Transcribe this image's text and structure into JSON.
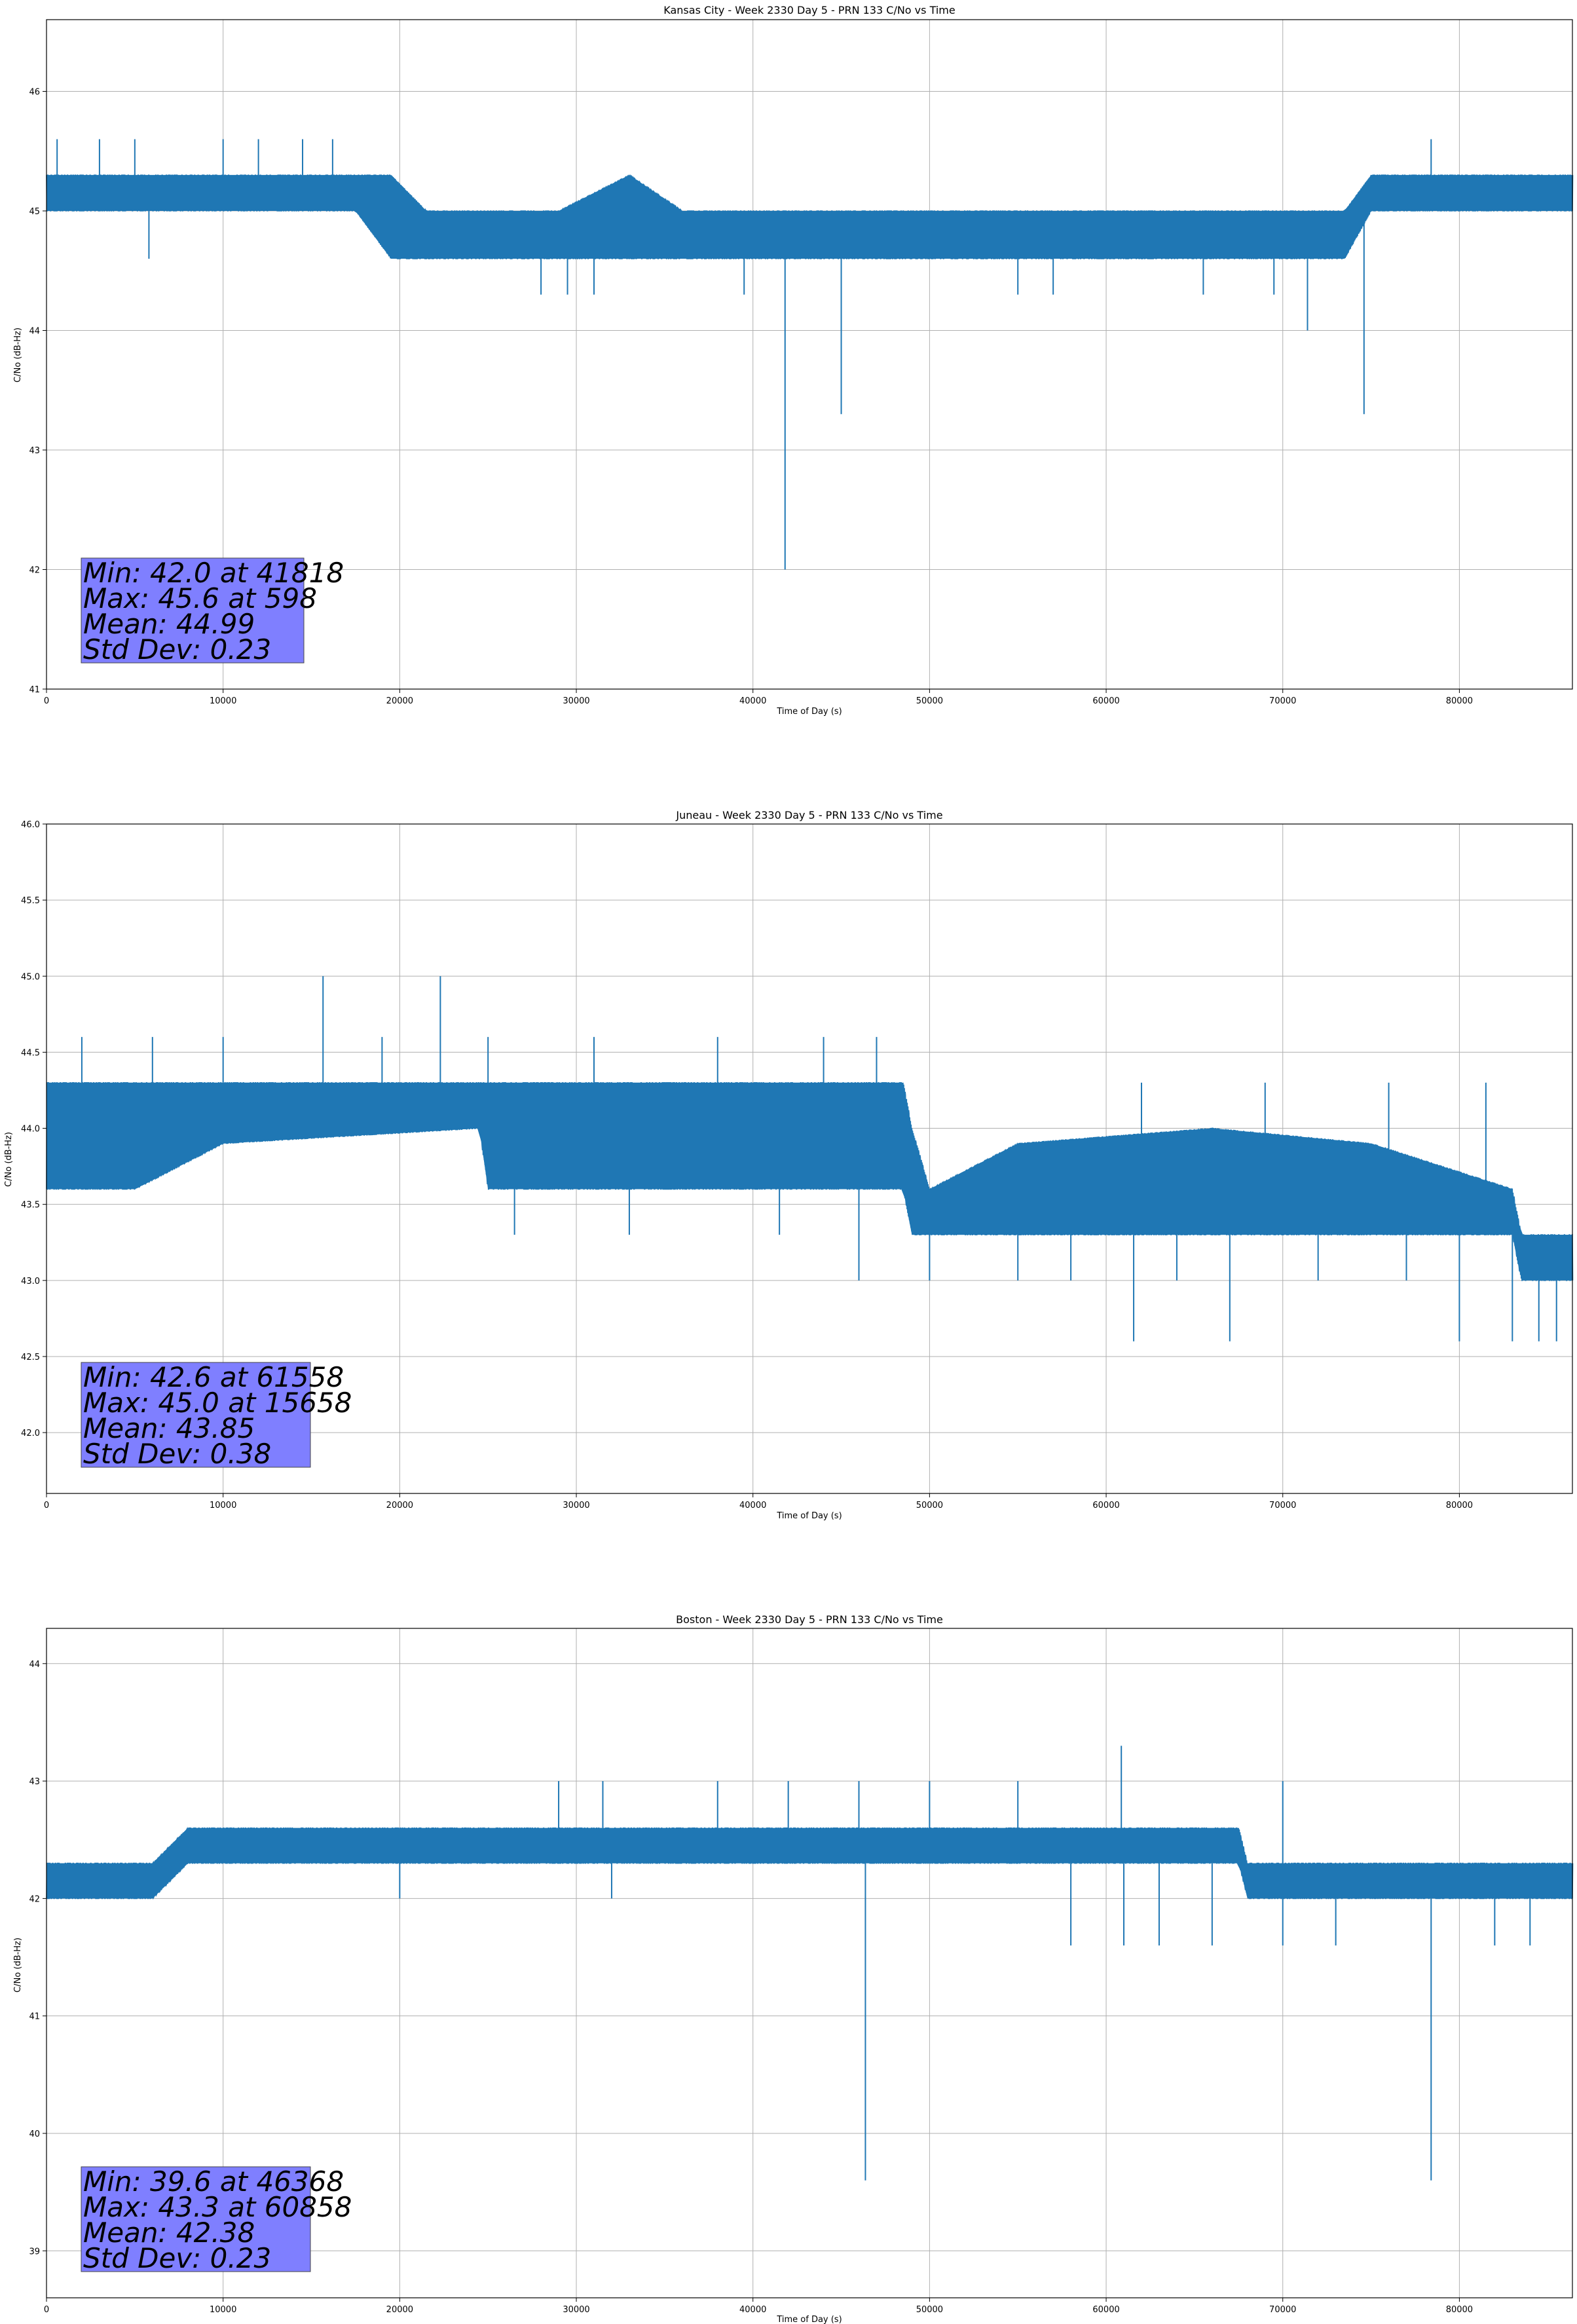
{
  "colors": {
    "series": "#1f77b4",
    "stats_box": "#7f7fff",
    "grid": "#b0b0b0",
    "axes": "#000000"
  },
  "chart_data": [
    {
      "type": "line",
      "title": "Kansas City - Week 2330 Day 5 - PRN 133 C/No vs Time",
      "xlabel": "Time of Day (s)",
      "ylabel": "C/No (dB-Hz)",
      "xlim": [
        0,
        86400
      ],
      "ylim": [
        41,
        46.6
      ],
      "xticks": [
        0,
        10000,
        20000,
        30000,
        40000,
        50000,
        60000,
        70000,
        80000
      ],
      "yticks": [
        41,
        42,
        43,
        44,
        45,
        46
      ],
      "grid": true,
      "legend": "none",
      "series": [
        {
          "name": "",
          "color": "#1f77b4",
          "band": [
            [
              0,
              45.0,
              45.3
            ],
            [
              17500,
              45.0,
              45.3
            ],
            [
              19500,
              44.6,
              45.3
            ],
            [
              21500,
              44.6,
              45.0
            ],
            [
              29000,
              44.6,
              45.0
            ],
            [
              33000,
              44.6,
              45.3
            ],
            [
              36000,
              44.6,
              45.0
            ],
            [
              64000,
              44.6,
              45.0
            ],
            [
              66000,
              44.6,
              45.0
            ],
            [
              73500,
              44.6,
              45.0
            ],
            [
              75000,
              45.0,
              45.3
            ],
            [
              86400,
              45.0,
              45.3
            ]
          ]
        }
      ],
      "spikes": [
        [
          5800,
          44.6
        ],
        [
          28000,
          44.3
        ],
        [
          29500,
          44.3
        ],
        [
          31000,
          44.3
        ],
        [
          39500,
          44.3
        ],
        [
          41818,
          42.0
        ],
        [
          45000,
          43.3
        ],
        [
          55000,
          44.3
        ],
        [
          57000,
          44.3
        ],
        [
          65500,
          44.3
        ],
        [
          69500,
          44.3
        ],
        [
          71400,
          44.0
        ],
        [
          74600,
          43.3
        ]
      ],
      "peaks": [
        [
          600,
          45.6
        ],
        [
          3000,
          45.6
        ],
        [
          5000,
          45.6
        ],
        [
          10000,
          45.6
        ],
        [
          12000,
          45.6
        ],
        [
          14500,
          45.6
        ],
        [
          16200,
          45.6
        ],
        [
          78400,
          45.6
        ]
      ],
      "stats": {
        "min": "Min: 42.0 at 41818",
        "max": "Max: 45.6 at 598",
        "mean": "Mean: 44.99",
        "std": "Std Dev: 0.23"
      }
    },
    {
      "type": "line",
      "title": "Juneau - Week 2330 Day 5 - PRN 133 C/No vs Time",
      "xlabel": "Time of Day (s)",
      "ylabel": "C/No (dB-Hz)",
      "xlim": [
        0,
        86400
      ],
      "ylim": [
        41.6,
        46.0
      ],
      "xticks": [
        0,
        10000,
        20000,
        30000,
        40000,
        50000,
        60000,
        70000,
        80000
      ],
      "yticks": [
        42.0,
        42.5,
        43.0,
        43.5,
        44.0,
        44.5,
        45.0,
        45.5,
        46.0
      ],
      "grid": true,
      "legend": "none",
      "series": [
        {
          "name": "",
          "color": "#1f77b4",
          "band": [
            [
              0,
              43.6,
              44.3
            ],
            [
              5000,
              43.6,
              44.3
            ],
            [
              10000,
              43.9,
              44.3
            ],
            [
              24500,
              44.0,
              44.3
            ],
            [
              25000,
              43.6,
              44.3
            ],
            [
              36000,
              43.6,
              44.3
            ],
            [
              48500,
              43.6,
              44.3
            ],
            [
              49000,
              43.3,
              44.0
            ],
            [
              50000,
              43.3,
              43.6
            ],
            [
              55000,
              43.3,
              43.9
            ],
            [
              66000,
              43.3,
              44.0
            ],
            [
              75000,
              43.3,
              43.9
            ],
            [
              83000,
              43.3,
              43.6
            ],
            [
              83500,
              43.0,
              43.3
            ],
            [
              86400,
              43.0,
              43.3
            ]
          ]
        }
      ],
      "spikes": [
        [
          26500,
          43.3
        ],
        [
          33000,
          43.3
        ],
        [
          41500,
          43.3
        ],
        [
          46000,
          43.0
        ],
        [
          50000,
          43.0
        ],
        [
          55000,
          43.0
        ],
        [
          58000,
          43.0
        ],
        [
          61558,
          42.6
        ],
        [
          64000,
          43.0
        ],
        [
          67000,
          42.6
        ],
        [
          72000,
          43.0
        ],
        [
          77000,
          43.0
        ],
        [
          80000,
          42.6
        ],
        [
          83000,
          42.6
        ],
        [
          84500,
          42.6
        ],
        [
          85500,
          42.6
        ]
      ],
      "peaks": [
        [
          2000,
          44.6
        ],
        [
          6000,
          44.6
        ],
        [
          10000,
          44.6
        ],
        [
          15658,
          45.0
        ],
        [
          19000,
          44.6
        ],
        [
          22300,
          45.0
        ],
        [
          25000,
          44.6
        ],
        [
          31000,
          44.6
        ],
        [
          38000,
          44.6
        ],
        [
          44000,
          44.6
        ],
        [
          47000,
          44.6
        ],
        [
          62000,
          44.3
        ],
        [
          69000,
          44.3
        ],
        [
          76000,
          44.3
        ],
        [
          81500,
          44.3
        ]
      ],
      "stats": {
        "min": "Min: 42.6 at 61558",
        "max": "Max: 45.0 at 15658",
        "mean": "Mean: 43.85",
        "std": "Std Dev: 0.38"
      }
    },
    {
      "type": "line",
      "title": "Boston - Week 2330 Day 5 - PRN 133 C/No vs Time",
      "xlabel": "Time of Day (s)",
      "ylabel": "C/No (dB-Hz)",
      "xlim": [
        0,
        86400
      ],
      "ylim": [
        38.6,
        44.3
      ],
      "xticks": [
        0,
        10000,
        20000,
        30000,
        40000,
        50000,
        60000,
        70000,
        80000
      ],
      "yticks": [
        39,
        40,
        41,
        42,
        43,
        44
      ],
      "grid": true,
      "legend": "none",
      "series": [
        {
          "name": "",
          "color": "#1f77b4",
          "band": [
            [
              0,
              42.0,
              42.3
            ],
            [
              6000,
              42.0,
              42.3
            ],
            [
              8000,
              42.3,
              42.6
            ],
            [
              35000,
              42.3,
              42.6
            ],
            [
              37000,
              42.3,
              42.6
            ],
            [
              67500,
              42.3,
              42.6
            ],
            [
              68000,
              42.0,
              42.3
            ],
            [
              86400,
              42.0,
              42.3
            ]
          ]
        }
      ],
      "spikes": [
        [
          4000,
          42.0
        ],
        [
          20000,
          42.0
        ],
        [
          32000,
          42.0
        ],
        [
          46368,
          39.6
        ],
        [
          58000,
          41.6
        ],
        [
          61000,
          41.6
        ],
        [
          63000,
          41.6
        ],
        [
          66000,
          41.6
        ],
        [
          70000,
          41.6
        ],
        [
          73000,
          41.6
        ],
        [
          78400,
          39.6
        ],
        [
          82000,
          41.6
        ],
        [
          84000,
          41.6
        ]
      ],
      "peaks": [
        [
          29000,
          43.0
        ],
        [
          31500,
          43.0
        ],
        [
          38000,
          43.0
        ],
        [
          42000,
          43.0
        ],
        [
          46000,
          43.0
        ],
        [
          50000,
          43.0
        ],
        [
          55000,
          43.0
        ],
        [
          60858,
          43.3
        ],
        [
          70000,
          43.0
        ]
      ],
      "stats": {
        "min": "Min: 39.6 at 46368",
        "max": "Max: 43.3 at 60858",
        "mean": "Mean: 42.38",
        "std": "Std Dev: 0.23"
      }
    }
  ]
}
